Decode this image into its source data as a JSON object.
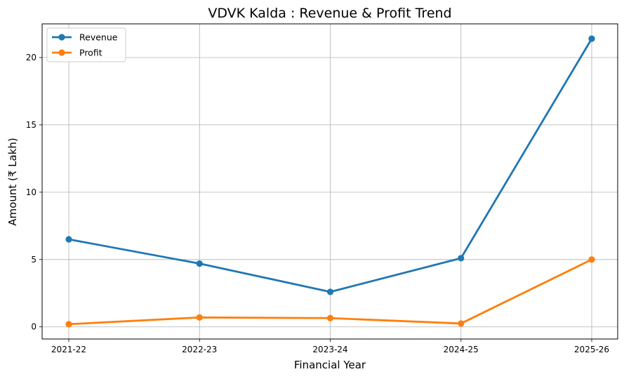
{
  "chart_data": {
    "type": "line",
    "title": "VDVK Kalda : Revenue & Profit Trend",
    "xlabel": "Financial Year",
    "ylabel": "Amount (₹ Lakh)",
    "categories": [
      "2021-22",
      "2022-23",
      "2023-24",
      "2024-25",
      "2025-26"
    ],
    "series": [
      {
        "name": "Revenue",
        "color": "#1f77b4",
        "values": [
          6.5,
          4.7,
          2.6,
          5.1,
          21.4
        ]
      },
      {
        "name": "Profit",
        "color": "#ff7f0e",
        "values": [
          0.2,
          0.7,
          0.65,
          0.25,
          5.0
        ]
      }
    ],
    "ylim": [
      -0.9,
      22.5
    ],
    "yticks": [
      0,
      5,
      10,
      15,
      20
    ],
    "grid": true,
    "legend": "top-left",
    "marker": "circle"
  }
}
